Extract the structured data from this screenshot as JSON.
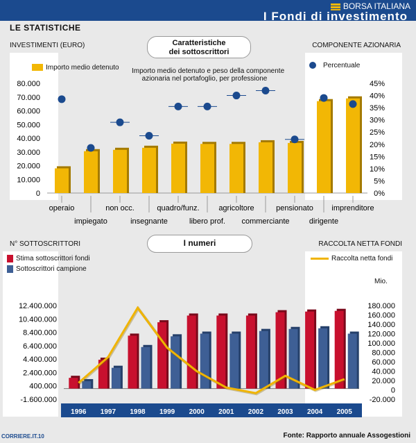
{
  "header": {
    "brand": "BORSA ITALIANA",
    "title": "I Fondi di investimento"
  },
  "section": "LE STATISTICHE",
  "top": {
    "left_axis_title": "INVESTIMENTI (EURO)",
    "right_axis_title": "COMPONENTE AZIONARIA",
    "pill_line1": "Caratteristiche",
    "pill_line2": "dei sottoscrittori",
    "legend_bar": "Importo medio detenuto",
    "legend_dot": "Percentuale",
    "note_line1": "Importo medio detenuto e peso della componente",
    "note_line2": "azionaria nel portafoglio, per professione"
  },
  "bottom": {
    "left_axis_title": "N° SOTTOSCRITTORI",
    "right_axis_title": "RACCOLTA NETTA FONDI",
    "pill": "I numeri",
    "legend_red": "Stima sottoscrittori fondi",
    "legend_blue": "Sottoscrittori campione",
    "legend_line": "Raccolta netta fondi",
    "unit": "Mio."
  },
  "footer": {
    "left": "CORRIERE.IT.10",
    "right": "Fonte: Rapporto annuale Assogestioni"
  },
  "colors": {
    "bar_gold": "#f2b705",
    "red": "#c8102e",
    "blue": "#3e5f95",
    "navy": "#1b4a8e",
    "line": "#f0b400"
  },
  "chart_data": [
    {
      "type": "bar",
      "categories": [
        "operaio",
        "impiegato",
        "non occ.",
        "insegnante",
        "quadro/funz.",
        "libero prof.",
        "agricoltore",
        "commerciante",
        "pensionato",
        "dirigente",
        "imprenditore"
      ],
      "series": [
        {
          "name": "Importo medio detenuto",
          "axis": "left",
          "values": [
            18000,
            30500,
            31500,
            33000,
            36000,
            35800,
            35800,
            37000,
            36500,
            67000,
            69000
          ]
        },
        {
          "name": "Percentuale",
          "type": "scatter",
          "axis": "right",
          "values": [
            38.5,
            18.5,
            29,
            23.5,
            35.5,
            35.5,
            40,
            42,
            22,
            39,
            36.5
          ]
        }
      ],
      "y_left": {
        "ticks": [
          "0",
          "10.000",
          "20.000",
          "30.000",
          "40.000",
          "50.000",
          "60.000",
          "70.000",
          "80.000"
        ],
        "ylim": [
          0,
          80000
        ]
      },
      "y_right": {
        "ticks": [
          "0%",
          "5%",
          "10%",
          "15%",
          "20%",
          "25%",
          "30%",
          "35%",
          "40%",
          "45%"
        ],
        "ylim": [
          0,
          45
        ]
      }
    },
    {
      "type": "bar",
      "categories": [
        "1996",
        "1997",
        "1998",
        "1999",
        "2000",
        "2001",
        "2002",
        "2003",
        "2004",
        "2005"
      ],
      "series": [
        {
          "name": "Stima sottoscrittori fondi",
          "axis": "left",
          "values": [
            1600000,
            4300000,
            7900000,
            9900000,
            10900000,
            10900000,
            10900000,
            11400000,
            11500000,
            11600000
          ]
        },
        {
          "name": "Sottoscrittori campione",
          "axis": "left",
          "values": [
            1100000,
            3100000,
            6200000,
            7800000,
            8200000,
            8200000,
            8600000,
            8900000,
            9000000,
            8200000
          ]
        },
        {
          "name": "Raccolta netta fondi",
          "type": "line",
          "axis": "right",
          "values": [
            15000,
            70000,
            175000,
            90000,
            40000,
            5000,
            -7000,
            30000,
            0,
            23000
          ]
        }
      ],
      "y_left": {
        "ticks": [
          "-1.600.000",
          "400.000",
          "2.400.000",
          "4.400.000",
          "6.400.000",
          "8.400.000",
          "10.400.000",
          "12.400.000"
        ],
        "ylim": [
          -1600000,
          12400000
        ]
      },
      "y_right": {
        "ticks": [
          "-20.000",
          "0",
          "20.000",
          "40.000",
          "60.000",
          "80.000",
          "100.000",
          "120.000",
          "140.000",
          "160.000",
          "180.000"
        ],
        "ylim": [
          -20000,
          180000
        ]
      }
    }
  ]
}
